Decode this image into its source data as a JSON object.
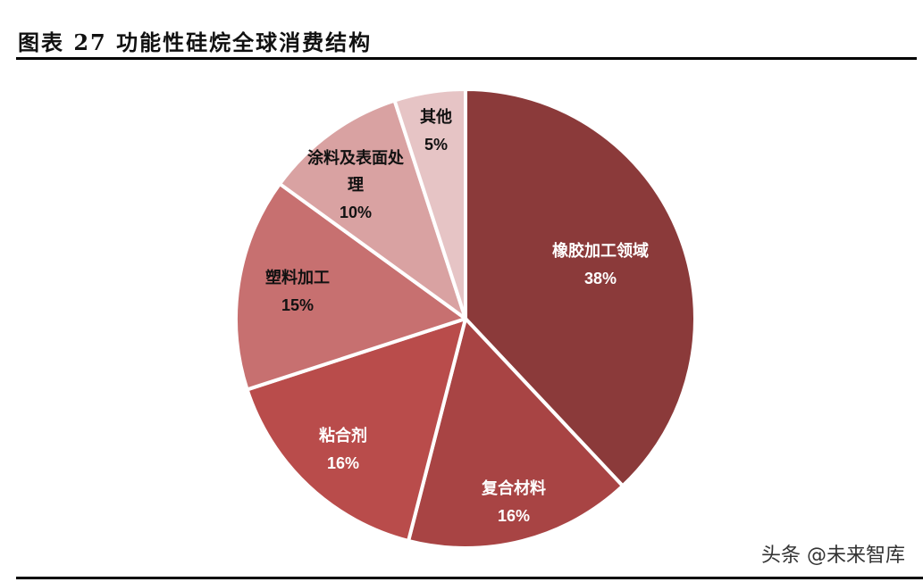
{
  "header": {
    "title": "图表 27  功能性硅烷全球消费结构"
  },
  "watermark": "头条 @未来智库",
  "chart_data": {
    "type": "pie",
    "title": "功能性硅烷全球消费结构",
    "figure_label": "图表 27",
    "categories": [
      "橡胶加工领域",
      "复合材料",
      "粘合剂",
      "塑料加工",
      "涂料及表面处理",
      "其他"
    ],
    "values": [
      38,
      16,
      16,
      15,
      10,
      5
    ],
    "unit": "%",
    "colors": [
      "#8B3A3A",
      "#A84444",
      "#B94C4B",
      "#C77070",
      "#D9A2A2",
      "#E6C4C5"
    ],
    "label_colors": [
      "#ffffff",
      "#ffffff",
      "#ffffff",
      "#111111",
      "#111111",
      "#111111"
    ],
    "start_angle_deg": 0,
    "direction": "clockwise",
    "legend": "none",
    "data_labels": "inside"
  },
  "labels": [
    {
      "name": "橡胶加工领域",
      "pct": "38%"
    },
    {
      "name": "复合材料",
      "pct": "16%"
    },
    {
      "name": "粘合剂",
      "pct": "16%"
    },
    {
      "name": "塑料加工",
      "pct": "15%"
    },
    {
      "name": "涂料及表面处\n理",
      "line1": "涂料及表面处",
      "line2": "理",
      "pct": "10%"
    },
    {
      "name": "其他",
      "pct": "5%"
    }
  ]
}
